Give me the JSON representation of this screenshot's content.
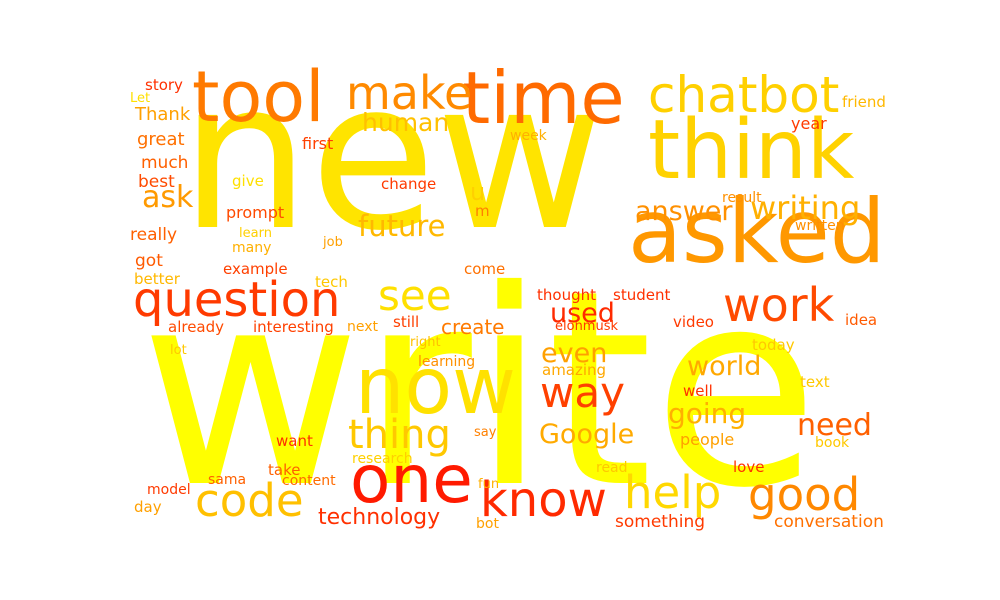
{
  "words": [
    {
      "text": "new",
      "color": "#ffe400"
    },
    {
      "text": "write",
      "color": "#ffff00"
    },
    {
      "text": "asked",
      "color": "#ff9800"
    },
    {
      "text": "think",
      "color": "#ffd200"
    },
    {
      "text": "time",
      "color": "#ff6a00"
    },
    {
      "text": "tool",
      "color": "#ff7a00"
    },
    {
      "text": "now",
      "color": "#ffe100"
    },
    {
      "text": "one",
      "color": "#ff1a00"
    },
    {
      "text": "chatbot",
      "color": "#ffd000"
    },
    {
      "text": "make",
      "color": "#ff8a00"
    },
    {
      "text": "question",
      "color": "#ff3a00"
    },
    {
      "text": "code",
      "color": "#ffc000"
    },
    {
      "text": "know",
      "color": "#ff2a00"
    },
    {
      "text": "help",
      "color": "#ffd800"
    },
    {
      "text": "good",
      "color": "#ff8800"
    },
    {
      "text": "work",
      "color": "#ff4a00"
    },
    {
      "text": "see",
      "color": "#ffe000"
    },
    {
      "text": "thing",
      "color": "#ffc800"
    },
    {
      "text": "way",
      "color": "#ff4000"
    },
    {
      "text": "writing",
      "color": "#ffb000"
    },
    {
      "text": "answer",
      "color": "#ff9000"
    },
    {
      "text": "future",
      "color": "#ffb800"
    },
    {
      "text": "human",
      "color": "#ffc000"
    },
    {
      "text": "ask",
      "color": "#ff9a00"
    },
    {
      "text": "used",
      "color": "#ff2a00"
    },
    {
      "text": "even",
      "color": "#ffa000"
    },
    {
      "text": "world",
      "color": "#ffa800"
    },
    {
      "text": "going",
      "color": "#ffb000"
    },
    {
      "text": "need",
      "color": "#ff6000"
    },
    {
      "text": "Google",
      "color": "#ffaa00"
    },
    {
      "text": "technology",
      "color": "#ff3000"
    },
    {
      "text": "conversation",
      "color": "#ff7000"
    },
    {
      "text": "something",
      "color": "#ff3a00"
    },
    {
      "text": "create",
      "color": "#ff7a00"
    },
    {
      "text": "u",
      "color": "#ffd000"
    },
    {
      "text": "m",
      "color": "#ff8000"
    },
    {
      "text": "story",
      "color": "#ff3000"
    },
    {
      "text": "Let",
      "color": "#ffe000"
    },
    {
      "text": "Thank",
      "color": "#ffa000"
    },
    {
      "text": "great",
      "color": "#ff7000"
    },
    {
      "text": "much",
      "color": "#ff6000"
    },
    {
      "text": "best",
      "color": "#ff4a00"
    },
    {
      "text": "give",
      "color": "#ffe000"
    },
    {
      "text": "first",
      "color": "#ff4000"
    },
    {
      "text": "change",
      "color": "#ff3a00"
    },
    {
      "text": "prompt",
      "color": "#ff4a00"
    },
    {
      "text": "learn",
      "color": "#ffd000"
    },
    {
      "text": "many",
      "color": "#ffb000"
    },
    {
      "text": "really",
      "color": "#ff6000"
    },
    {
      "text": "got",
      "color": "#ff5a00"
    },
    {
      "text": "better",
      "color": "#ffb800"
    },
    {
      "text": "example",
      "color": "#ff4000"
    },
    {
      "text": "tech",
      "color": "#ffc800"
    },
    {
      "text": "job",
      "color": "#ffa000"
    },
    {
      "text": "come",
      "color": "#ff7000"
    },
    {
      "text": "week",
      "color": "#ffb000"
    },
    {
      "text": "year",
      "color": "#ff3a00"
    },
    {
      "text": "friend",
      "color": "#ffb800"
    },
    {
      "text": "result",
      "color": "#ff9000"
    },
    {
      "text": "written",
      "color": "#ff9000"
    },
    {
      "text": "thought",
      "color": "#ff3000"
    },
    {
      "text": "student",
      "color": "#ff3000"
    },
    {
      "text": "elonmusk",
      "color": "#ff3a00"
    },
    {
      "text": "already",
      "color": "#ff4a00"
    },
    {
      "text": "interesting",
      "color": "#ff4000"
    },
    {
      "text": "next",
      "color": "#ffa000"
    },
    {
      "text": "still",
      "color": "#ff4000"
    },
    {
      "text": "video",
      "color": "#ff3a00"
    },
    {
      "text": "idea",
      "color": "#ff5a00"
    },
    {
      "text": "lot",
      "color": "#ffc800"
    },
    {
      "text": "right",
      "color": "#ffc000"
    },
    {
      "text": "learning",
      "color": "#ff9000"
    },
    {
      "text": "amazing",
      "color": "#ffa800"
    },
    {
      "text": "today",
      "color": "#ffc800"
    },
    {
      "text": "well",
      "color": "#ff3000"
    },
    {
      "text": "text",
      "color": "#ffc800"
    },
    {
      "text": "say",
      "color": "#ff8000"
    },
    {
      "text": "want",
      "color": "#ff3000"
    },
    {
      "text": "research",
      "color": "#ffd000"
    },
    {
      "text": "people",
      "color": "#ffa000"
    },
    {
      "text": "book",
      "color": "#ffc800"
    },
    {
      "text": "take",
      "color": "#ff6000"
    },
    {
      "text": "read",
      "color": "#ffc800"
    },
    {
      "text": "love",
      "color": "#ff3000"
    },
    {
      "text": "sama",
      "color": "#ff6000"
    },
    {
      "text": "content",
      "color": "#ff6a00"
    },
    {
      "text": "fun",
      "color": "#ffb000"
    },
    {
      "text": "model",
      "color": "#ff3a00"
    },
    {
      "text": "day",
      "color": "#ffa000"
    },
    {
      "text": "bot",
      "color": "#ffa000"
    }
  ]
}
